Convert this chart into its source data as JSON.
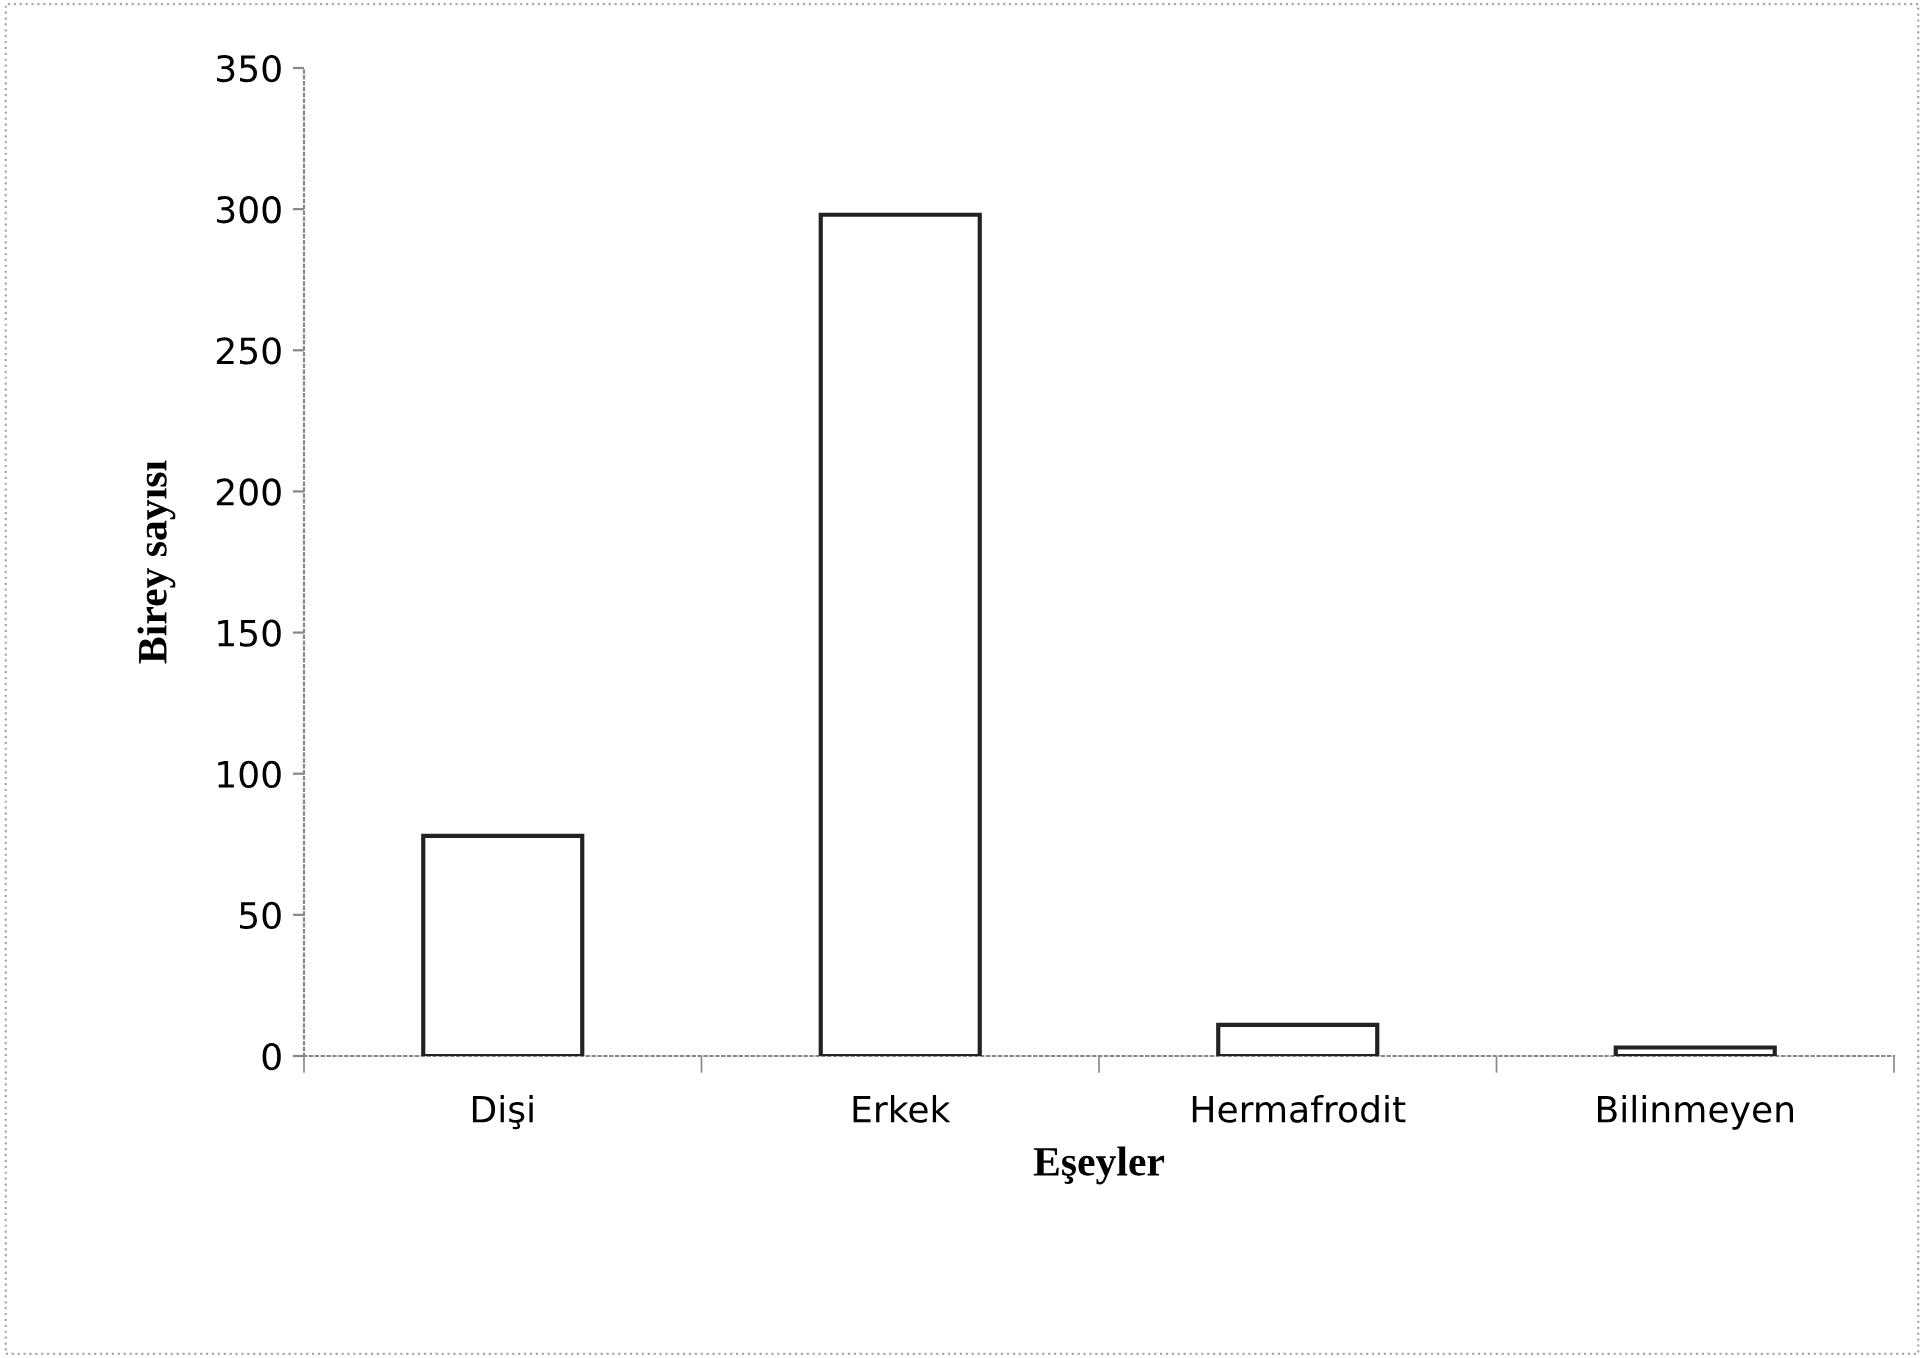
{
  "chart_data": {
    "type": "bar",
    "xlabel": "Eşeyler",
    "ylabel": "Birey sayısı",
    "categories": [
      "Dişi",
      "Erkek",
      "Hermafrodit",
      "Bilinmeyen"
    ],
    "values": [
      78,
      298,
      11,
      3
    ],
    "color": "#ffffff",
    "ylim": [
      0,
      350
    ],
    "yticks": [
      0,
      50,
      100,
      150,
      200,
      250,
      300,
      350
    ],
    "grid": false,
    "legend": false
  }
}
